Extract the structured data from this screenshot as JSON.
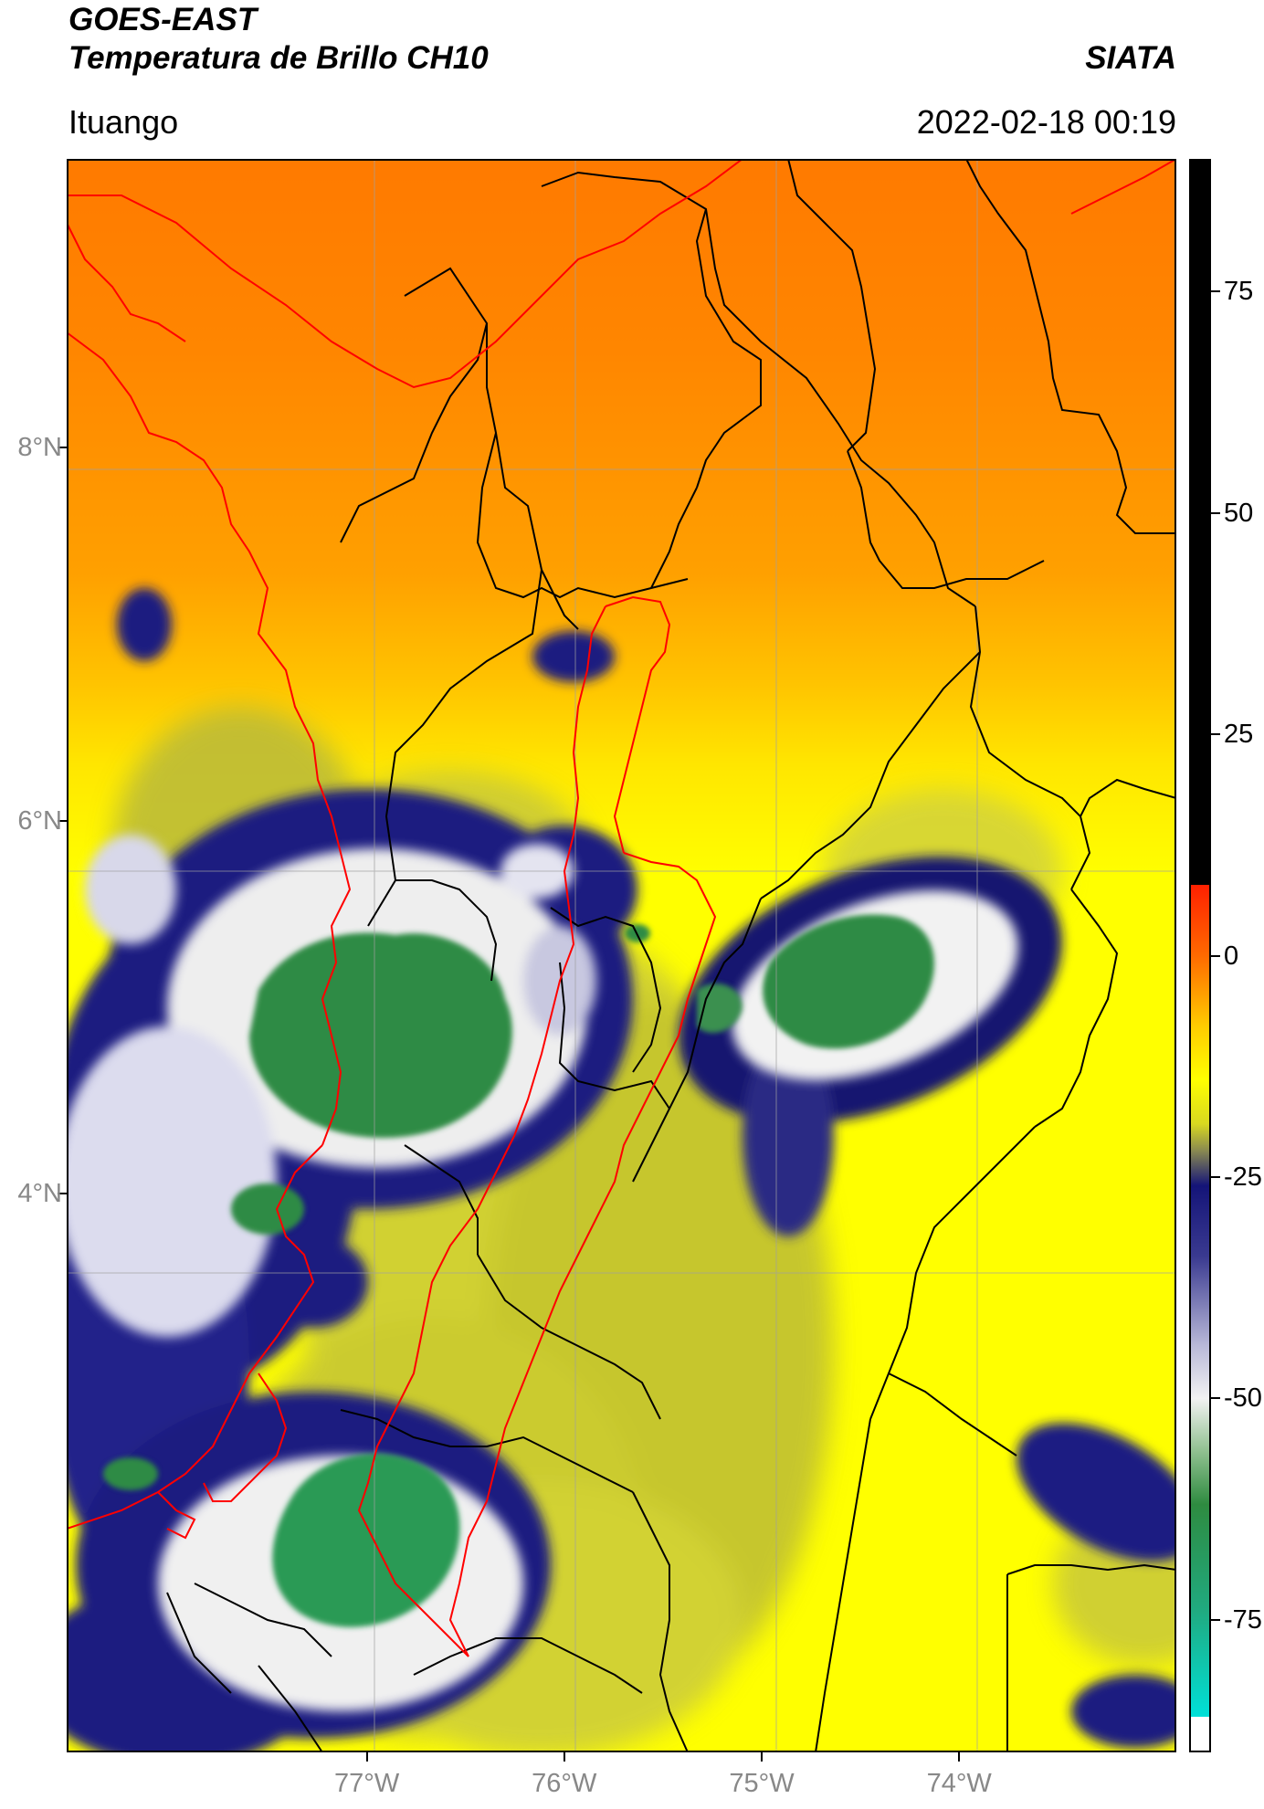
{
  "header": {
    "title_line1": "GOES-EAST",
    "title_line2": "Temperatura de Brillo CH10",
    "organization": "SIATA",
    "place": "Ituango",
    "datetime": "2022-02-18 00:19"
  },
  "map": {
    "lat_ticks": [
      {
        "value": 8,
        "label": "8°N"
      },
      {
        "value": 6,
        "label": "6°N"
      },
      {
        "value": 4,
        "label": "4°N"
      }
    ],
    "lon_ticks": [
      {
        "value": -77,
        "label": "77°W"
      },
      {
        "value": -76,
        "label": "76°W"
      },
      {
        "value": -75,
        "label": "75°W"
      },
      {
        "value": -74,
        "label": "74°W"
      }
    ],
    "extent": {
      "lon_min": -78.52,
      "lon_max": -72.9,
      "lat_min": 1.0,
      "lat_max": 9.55
    },
    "colors": {
      "warm_orange": "#ff7f00",
      "orange": "#ff9a00",
      "yellow": "#ffee00",
      "olive": "#bfbf30",
      "navy": "#141478",
      "white": "#f4f4f4",
      "green": "#2e8b40",
      "red_boundary": "#ff0000",
      "black_boundary": "#000000"
    }
  },
  "colorbar": {
    "vmin": -90,
    "vmax": 90,
    "ticks": [
      {
        "value": 75,
        "label": "75"
      },
      {
        "value": 50,
        "label": "50"
      },
      {
        "value": 25,
        "label": "25"
      },
      {
        "value": 0,
        "label": "0"
      },
      {
        "value": -25,
        "label": "-25"
      },
      {
        "value": -50,
        "label": "-50"
      },
      {
        "value": -75,
        "label": "-75"
      }
    ],
    "stops": [
      {
        "value": 90,
        "color": "#000000"
      },
      {
        "value": 8,
        "color": "#000000"
      },
      {
        "value": 8,
        "color": "#ff2000"
      },
      {
        "value": 0,
        "color": "#ff6a00"
      },
      {
        "value": -8,
        "color": "#ffcc00"
      },
      {
        "value": -14,
        "color": "#ffff00"
      },
      {
        "value": -19,
        "color": "#d8d820"
      },
      {
        "value": -22,
        "color": "#8a8a50"
      },
      {
        "value": -26,
        "color": "#141478"
      },
      {
        "value": -34,
        "color": "#3a3a90"
      },
      {
        "value": -44,
        "color": "#b8b8d8"
      },
      {
        "value": -50,
        "color": "#f2f2f2"
      },
      {
        "value": -56,
        "color": "#90c090"
      },
      {
        "value": -62,
        "color": "#2e8b40"
      },
      {
        "value": -74,
        "color": "#20aa80"
      },
      {
        "value": -86,
        "color": "#00e0d8"
      },
      {
        "value": -86,
        "color": "#ffffff"
      },
      {
        "value": -90,
        "color": "#ffffff"
      }
    ]
  }
}
